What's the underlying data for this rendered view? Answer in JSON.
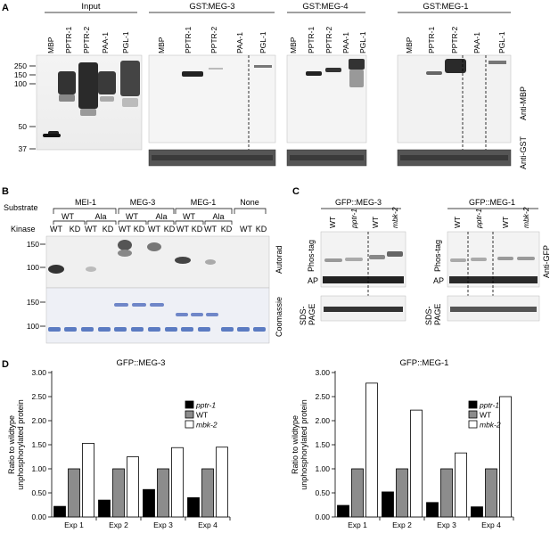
{
  "panel_labels": {
    "a": "A",
    "b": "B",
    "c": "C",
    "d": "D"
  },
  "panel_a": {
    "groups": [
      {
        "title": "Input",
        "lanes": [
          "MBP",
          "PPTR-1",
          "PPTR-2",
          "PAA-1",
          "PGL-1"
        ]
      },
      {
        "title": "GST:MEG-3",
        "lanes": [
          "MBP",
          "PPTR-1",
          "PPTR-2",
          "PAA-1",
          "PGL-1"
        ]
      },
      {
        "title": "GST:MEG-4",
        "lanes": [
          "MBP",
          "PPTR-1",
          "PPTR-2",
          "PAA-1",
          "PGL-1"
        ]
      },
      {
        "title": "GST:MEG-1",
        "lanes": [
          "MBP",
          "PPTR-1",
          "PPTR-2",
          "PAA-1",
          "PGL-1"
        ]
      }
    ],
    "markers": [
      "250",
      "150",
      "100",
      "50",
      "37"
    ],
    "right_labels": {
      "mbp": "Anti-MBP",
      "gst": "Anti-GST"
    }
  },
  "panel_b": {
    "row_substrate": "Substrate",
    "row_kinase": "Kinase",
    "substrates": [
      "MEI-1",
      "MEG-3",
      "MEG-1",
      "None"
    ],
    "variants": [
      "WT",
      "Ala",
      "WT",
      "Ala",
      "WT",
      "Ala"
    ],
    "kinase_lanes": [
      "WT",
      "KD",
      "WT",
      "KD",
      "WT",
      "KD",
      "WT",
      "KD",
      "WT",
      "KD",
      "WT",
      "KD",
      "WT",
      "KD"
    ],
    "markers_top": [
      "150",
      "100"
    ],
    "markers_bottom": [
      "150",
      "100"
    ],
    "right_labels": {
      "autorad": "Autorad",
      "coomassie": "Coomassie"
    }
  },
  "panel_c": {
    "blots": [
      {
        "title": "GFP::MEG-3",
        "lanes": [
          "WT",
          "pptr-1",
          "WT",
          "mbk-2"
        ]
      },
      {
        "title": "GFP::MEG-1",
        "lanes": [
          "WT",
          "pptr-1",
          "WT",
          "mbk-2"
        ]
      }
    ],
    "phos_tag": "Phos-tag",
    "ap": "AP",
    "sds_1": "SDS-",
    "sds_2": "PAGE",
    "right_label": "Anti-GFP"
  },
  "chart_data": [
    {
      "type": "bar",
      "title": "GFP::MEG-3",
      "ylabel_line1": "Ratio to wildtype",
      "ylabel_line2": "unphosphorylated protein",
      "categories": [
        "Exp 1",
        "Exp 2",
        "Exp 3",
        "Exp 4"
      ],
      "ylim": [
        0,
        3.0
      ],
      "yticks": [
        "0.00",
        "0.50",
        "1.00",
        "1.50",
        "2.00",
        "2.50",
        "3.00"
      ],
      "legend_position": "right",
      "series": [
        {
          "name": "pptr-1",
          "color": "#000000",
          "values": [
            0.22,
            0.35,
            0.57,
            0.4
          ]
        },
        {
          "name": "WT",
          "color": "#8c8c8c",
          "values": [
            1.0,
            1.0,
            1.0,
            1.0
          ]
        },
        {
          "name": "mbk-2",
          "color": "#ffffff",
          "values": [
            1.53,
            1.25,
            1.44,
            1.45
          ]
        }
      ]
    },
    {
      "type": "bar",
      "title": "GFP::MEG-1",
      "ylabel_line1": "Ratio to wildtype",
      "ylabel_line2": "unphosphorylated protein",
      "categories": [
        "Exp 1",
        "Exp 2",
        "Exp 3",
        "Exp 4"
      ],
      "ylim": [
        0,
        3.0
      ],
      "yticks": [
        "0.00",
        "0.50",
        "1.00",
        "1.50",
        "2.00",
        "2.50",
        "3.00"
      ],
      "legend_position": "right",
      "series": [
        {
          "name": "pptr-1",
          "color": "#000000",
          "values": [
            0.24,
            0.52,
            0.3,
            0.21
          ]
        },
        {
          "name": "WT",
          "color": "#8c8c8c",
          "values": [
            1.0,
            1.0,
            1.0,
            1.0
          ]
        },
        {
          "name": "mbk-2",
          "color": "#ffffff",
          "values": [
            2.78,
            2.22,
            1.33,
            2.5
          ]
        }
      ]
    }
  ]
}
